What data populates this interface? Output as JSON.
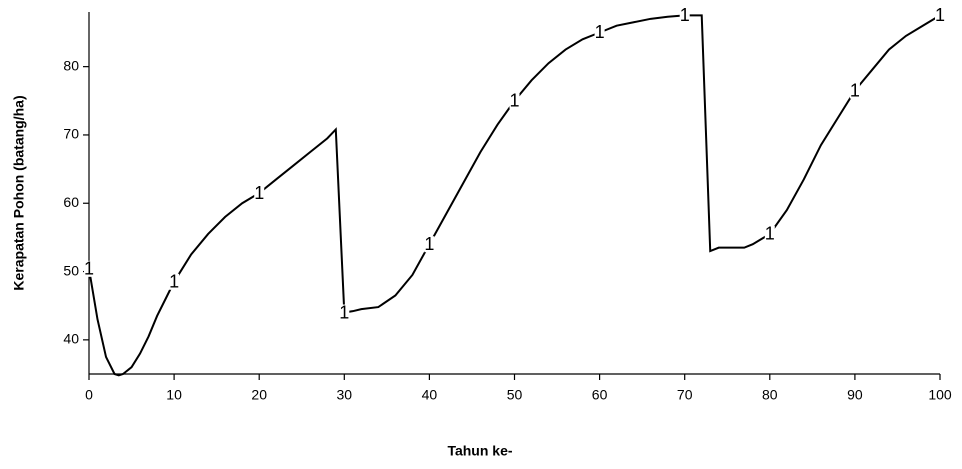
{
  "chart_data": {
    "type": "line",
    "xlabel": "Tahun ke-",
    "ylabel": "Kerapatan Pohon (batang/ha)",
    "x": [
      0,
      1,
      2,
      3,
      3.5,
      4,
      5,
      6,
      7,
      8,
      9,
      10,
      12,
      14,
      16,
      18,
      20,
      22,
      24,
      26,
      28,
      29,
      30,
      31,
      32,
      34,
      36,
      38,
      40,
      42,
      44,
      46,
      48,
      50,
      52,
      54,
      56,
      58,
      60,
      62,
      64,
      66,
      68,
      70,
      72,
      73,
      74,
      77,
      78,
      80,
      82,
      84,
      86,
      88,
      90,
      92,
      94,
      96,
      98,
      100
    ],
    "series": [
      {
        "name": "1",
        "color": "#000000",
        "values": [
          50.4,
          43,
          37.5,
          35,
          34.8,
          35,
          36,
          38,
          40.5,
          43.5,
          46,
          48.5,
          52.5,
          55.5,
          58,
          60,
          61.5,
          63.5,
          65.5,
          67.5,
          69.5,
          70.8,
          44,
          44.2,
          44.5,
          44.8,
          46.5,
          49.5,
          54,
          58.5,
          63,
          67.5,
          71.5,
          75,
          78,
          80.5,
          82.5,
          84,
          85,
          86,
          86.5,
          87,
          87.3,
          87.5,
          87.5,
          53,
          53.5,
          53.5,
          54,
          55.5,
          59,
          63.5,
          68.5,
          72.5,
          76.5,
          79.5,
          82.5,
          84.5,
          86,
          87.5
        ]
      }
    ],
    "xlim": [
      0,
      100
    ],
    "xticks": [
      0,
      10,
      20,
      30,
      40,
      50,
      60,
      70,
      80,
      90,
      100
    ],
    "ylim": [
      35,
      88
    ],
    "yticks": [
      40,
      50,
      60,
      70,
      80
    ]
  }
}
